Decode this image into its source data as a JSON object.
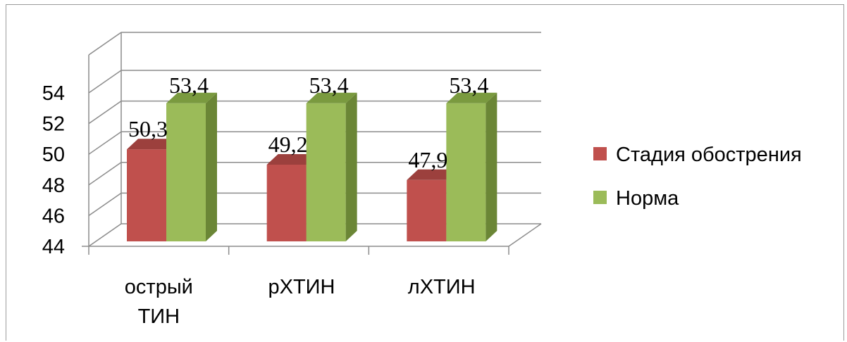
{
  "chart_data": {
    "type": "bar",
    "title": "",
    "xlabel": "",
    "ylabel": "",
    "categories": [
      [
        "острый",
        "ТИН"
      ],
      [
        "рХТИН"
      ],
      [
        "лХТИН"
      ]
    ],
    "yticks": [
      "44",
      "46",
      "48",
      "50",
      "52",
      "54"
    ],
    "ylim": [
      44,
      54
    ],
    "grid": true,
    "legend_position": "right",
    "series": [
      {
        "name": "Стадия обострения",
        "values": [
          50,
          49,
          48
        ],
        "labels": [
          "50,3",
          "49,2",
          "47,9"
        ],
        "color": "#c0504d",
        "side_color": "#8c3836",
        "top_color": "#9c403d"
      },
      {
        "name": "Норма",
        "values": [
          53,
          53,
          53
        ],
        "labels": [
          "53,4",
          "53,4",
          "53,4"
        ],
        "color": "#9bbb59",
        "side_color": "#6b8636",
        "top_color": "#7a9a3f"
      }
    ]
  }
}
